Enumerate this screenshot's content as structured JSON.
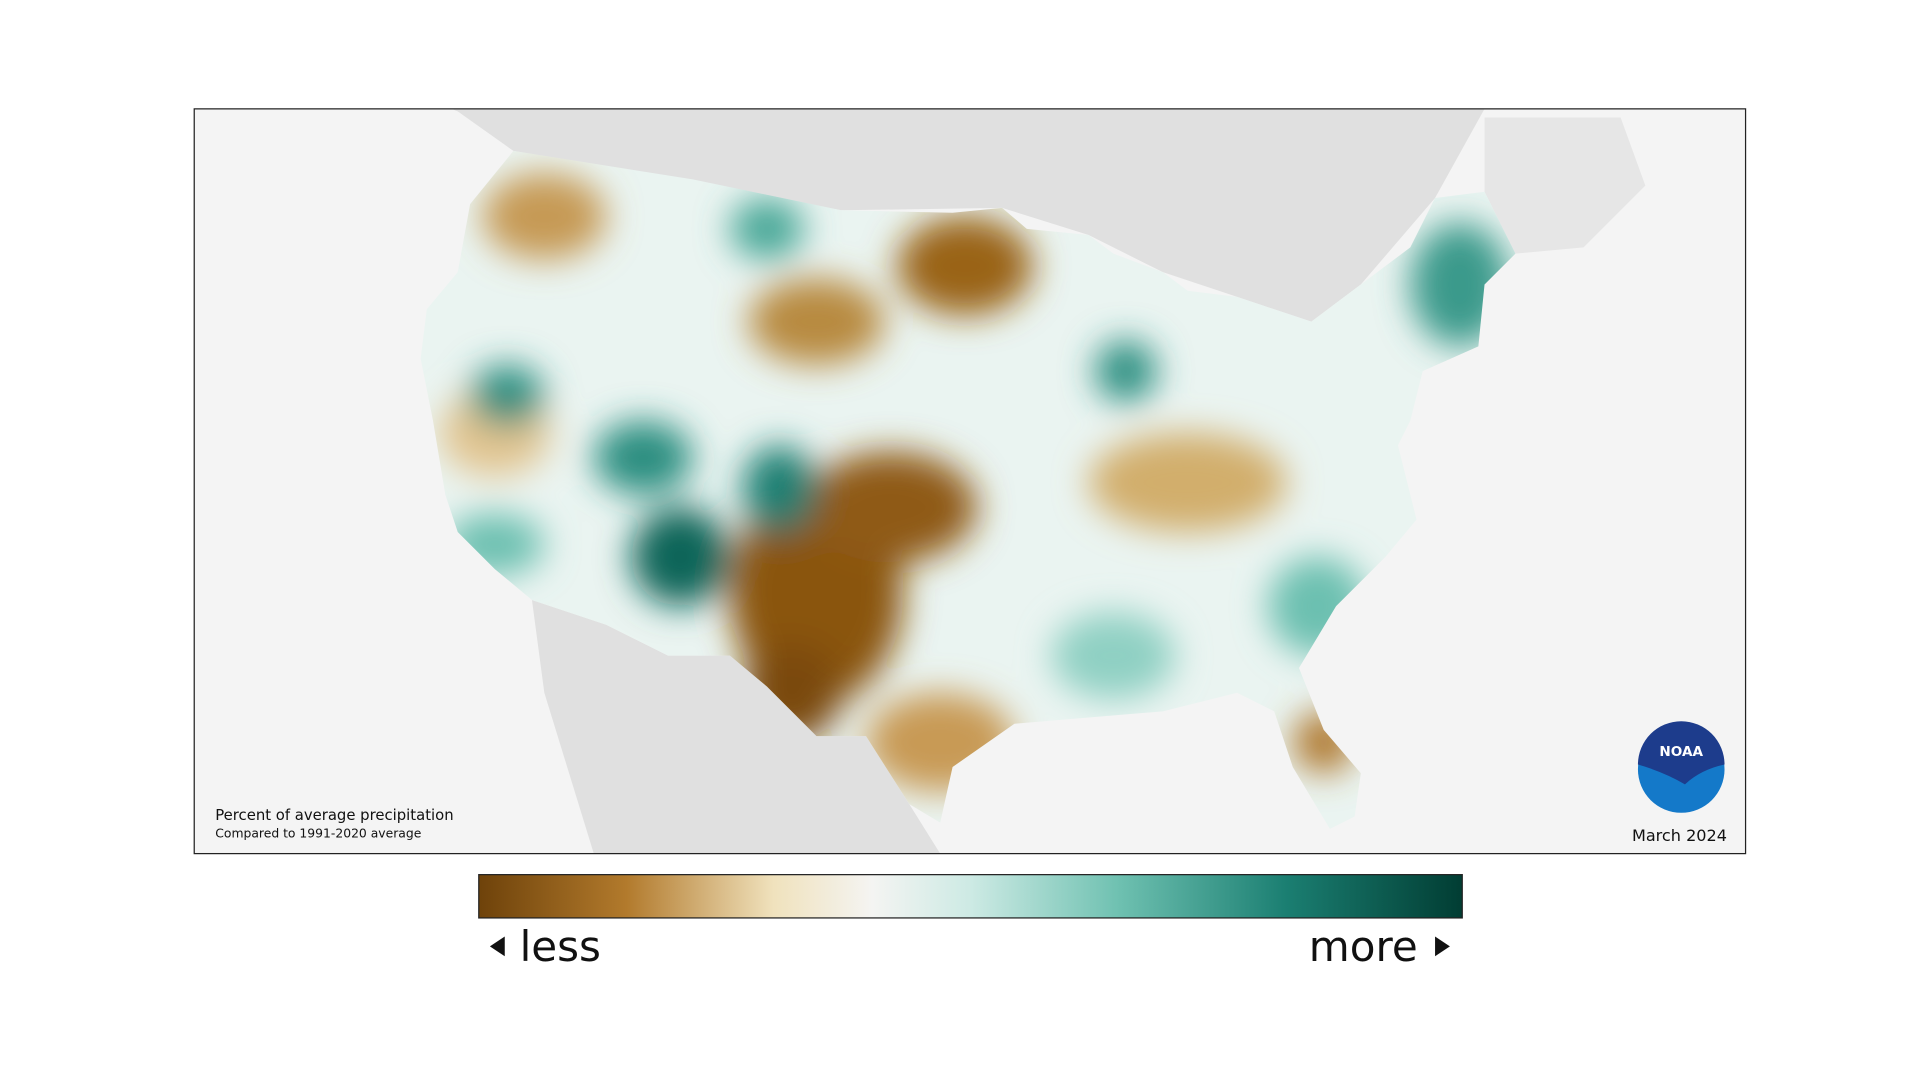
{
  "map": {
    "title": "Percent of average precipitation",
    "subtitle": "Compared to 1991-2020 average",
    "period": "March 2024",
    "logo_text": "NOAA"
  },
  "legend": {
    "low_label": "less",
    "high_label": "more"
  }
}
